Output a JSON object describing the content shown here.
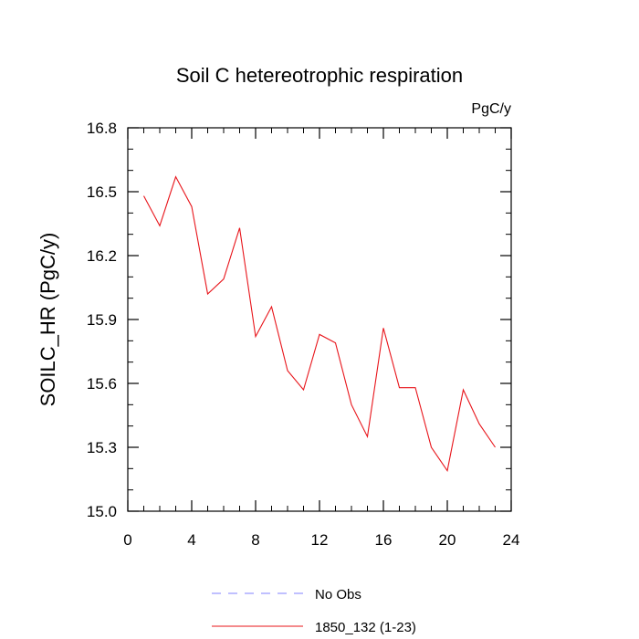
{
  "chart_data": {
    "type": "line",
    "title": "Soil C hetereotrophic respiration",
    "units_label": "PgC/y",
    "ylabel": "SOILC_HR  (PgC/y)",
    "xlabel": "",
    "xlim": [
      0,
      24
    ],
    "ylim": [
      15.0,
      16.8
    ],
    "x_ticks": [
      "0",
      "4",
      "8",
      "12",
      "16",
      "20",
      "24"
    ],
    "y_ticks": [
      "15.0",
      "15.3",
      "15.6",
      "15.9",
      "16.2",
      "16.5",
      "16.8"
    ],
    "grid": false,
    "legend_position": "bottom",
    "x": [
      1,
      2,
      3,
      4,
      5,
      6,
      7,
      8,
      9,
      10,
      11,
      12,
      13,
      14,
      15,
      16,
      17,
      18,
      19,
      20,
      21,
      22,
      23
    ],
    "series": [
      {
        "name": "1850_132 (1-23)",
        "color": "#e8141a",
        "values": [
          16.48,
          16.34,
          16.57,
          16.43,
          16.02,
          16.09,
          16.33,
          15.82,
          15.96,
          15.66,
          15.57,
          15.83,
          15.79,
          15.5,
          15.35,
          15.86,
          15.58,
          15.58,
          15.3,
          15.19,
          15.57,
          15.41,
          15.3
        ]
      }
    ],
    "legend": [
      {
        "label": "No Obs",
        "color": "#8080ff",
        "style": "dashed"
      },
      {
        "label": "1850_132 (1-23)",
        "color": "#e8141a",
        "style": "solid"
      }
    ]
  }
}
